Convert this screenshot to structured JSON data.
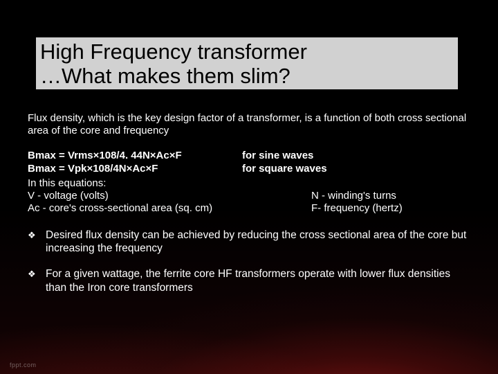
{
  "title": {
    "line1": "High Frequency transformer",
    "line2": "…What makes them slim?"
  },
  "intro": "Flux density, which is the key design factor of a transformer, is a function of both cross sectional area of the core and frequency",
  "equations": [
    {
      "lhs": "Bmax = Vrms×108/4. 44N×Ac×F",
      "rhs": " for sine waves"
    },
    {
      "lhs": "Bmax = Vpk×108/4N×Ac×F",
      "rhs": "for square waves"
    }
  ],
  "definitions": {
    "header": "In this equations:",
    "left": [
      "V - voltage (volts)",
      "Ac - core's cross-sectional area (sq. cm)"
    ],
    "right": [
      "N - winding's turns",
      "F- frequency (hertz)"
    ]
  },
  "bullets": [
    "Desired flux density can be achieved by reducing the cross sectional area of the core but increasing the frequency",
    "For a given wattage, the ferrite core HF transformers operate with lower flux densities than the Iron core transformers"
  ],
  "footer": "fppt.com",
  "colors": {
    "text": "#ffffff",
    "title_bg": "rgba(255,255,255,0.82)",
    "title_text": "#000000",
    "background": "#000000",
    "accent_red": "#b82020"
  },
  "bullet_marker": "❖"
}
